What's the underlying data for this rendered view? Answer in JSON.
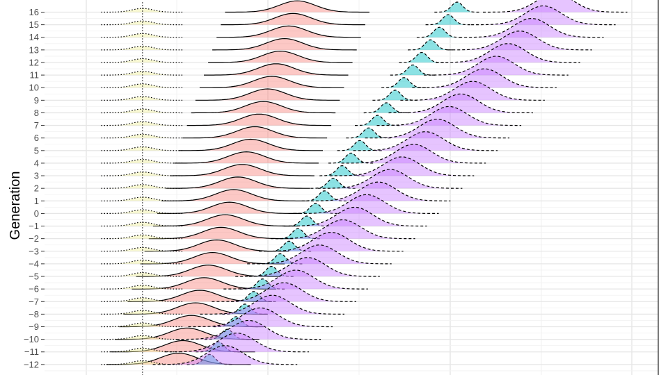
{
  "chart_data": {
    "type": "ridgeline",
    "title": "",
    "xlabel": "",
    "ylabel": "Generation",
    "y_axis": {
      "ticks": [
        16,
        15,
        14,
        13,
        12,
        11,
        10,
        9,
        8,
        7,
        6,
        5,
        4,
        3,
        2,
        1,
        0,
        -1,
        -2,
        -3,
        -4,
        -5,
        -6,
        -7,
        -8,
        -9,
        -10,
        -11,
        -12
      ],
      "tick_labels": [
        "16",
        "15",
        "14",
        "13",
        "12",
        "11",
        "10",
        "9",
        "8",
        "7",
        "6",
        "5",
        "4",
        "3",
        "2",
        "1",
        "0",
        "−1",
        "−2",
        "−3",
        "−4",
        "−5",
        "−6",
        "−7",
        "−8",
        "−9",
        "−10",
        "−11",
        "−12"
      ],
      "visible_range": [
        -12.5,
        17
      ]
    },
    "x_axis": {
      "visible_range_relative": [
        -0.19,
        1.0
      ],
      "tick_labels_visible": false
    },
    "grid": true,
    "legend": "none",
    "series": [
      {
        "id": "red",
        "fill": "#f8766d",
        "fill_opacity": 0.4,
        "line_style": "solid",
        "center": {
          "gen": [
            -12,
            16
          ],
          "value": [
            0.07,
            0.3
          ]
        },
        "sd": 0.035,
        "height": 0.9,
        "generations": [
          -12,
          16
        ]
      },
      {
        "id": "yellow",
        "fill": "#f2f2a6",
        "fill_opacity": 0.5,
        "line_style": "dotted",
        "center": {
          "gen": [
            -12,
            16
          ],
          "value": [
            0.0,
            0.0
          ]
        },
        "sd": 0.02,
        "height": 0.3,
        "generations": [
          -12,
          16
        ]
      },
      {
        "id": "cyan",
        "fill": "#00bfc4",
        "fill_opacity": 0.45,
        "line_style": "dashed",
        "center": {
          "gen": [
            -12,
            16
          ],
          "value": [
            0.13,
            0.61
          ]
        },
        "sd": 0.011,
        "height": 0.8,
        "generations": [
          -12,
          16
        ]
      },
      {
        "id": "purple",
        "fill": "#c77cff",
        "fill_opacity": 0.45,
        "line_style": "dashed",
        "center": {
          "gen": [
            -12,
            16
          ],
          "value": [
            0.16,
            0.8
          ]
        },
        "sd": 0.035,
        "height": 1.5,
        "generations": [
          -12,
          16
        ]
      }
    ]
  }
}
